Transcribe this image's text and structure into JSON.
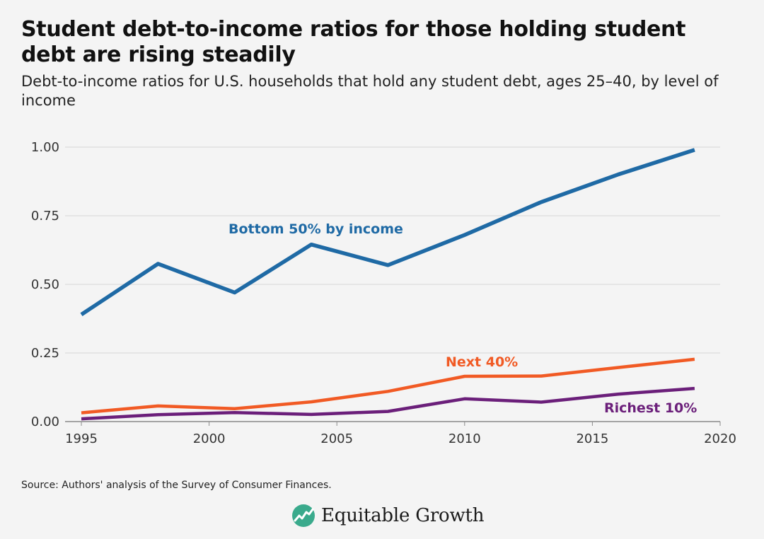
{
  "header": {
    "title": "Student debt-to-income ratios for those holding student debt are rising steadily",
    "subtitle": "Debt-to-income ratios for U.S. households that hold any student debt, ages 25–40, by level of income"
  },
  "footer": {
    "source": "Source: Authors' analysis of the Survey of Consumer Finances.",
    "logo_text": "Equitable Growth",
    "logo_icon": "growth-chart-icon",
    "logo_color": "#3aaa8c"
  },
  "chart_data": {
    "type": "line",
    "xlim": [
      1995,
      2020
    ],
    "ylim": [
      0,
      1.0
    ],
    "x_ticks": [
      1995,
      2000,
      2005,
      2010,
      2015,
      2020
    ],
    "y_ticks": [
      0,
      0.25,
      0.5,
      0.75,
      1.0
    ],
    "x_tick_labels": [
      "1995",
      "2000",
      "2005",
      "2010",
      "2015",
      "2020"
    ],
    "y_tick_labels": [
      "0.00",
      "0.25",
      "0.50",
      "0.75",
      "1.00"
    ],
    "grid": "horizontal",
    "legend": "inline-labels",
    "series": [
      {
        "name": "Bottom 50% by income",
        "color": "#1f6aa5",
        "x": [
          1995,
          1998,
          2001,
          2004,
          2007,
          2010,
          2013,
          2016,
          2019
        ],
        "values": [
          0.39,
          0.575,
          0.47,
          0.645,
          0.57,
          0.68,
          0.8,
          0.9,
          0.99
        ]
      },
      {
        "name": "Next 40%",
        "color": "#f15a24",
        "x": [
          1995,
          1998,
          2001,
          2004,
          2007,
          2010,
          2013,
          2016,
          2019
        ],
        "values": [
          0.032,
          0.057,
          0.047,
          0.072,
          0.11,
          0.165,
          0.166,
          0.197,
          0.227
        ]
      },
      {
        "name": "Richest 10%",
        "color": "#6b1f7a",
        "x": [
          1995,
          1998,
          2001,
          2004,
          2007,
          2010,
          2013,
          2016,
          2019
        ],
        "values": [
          0.01,
          0.025,
          0.033,
          0.026,
          0.037,
          0.083,
          0.071,
          0.1,
          0.121
        ]
      }
    ]
  }
}
